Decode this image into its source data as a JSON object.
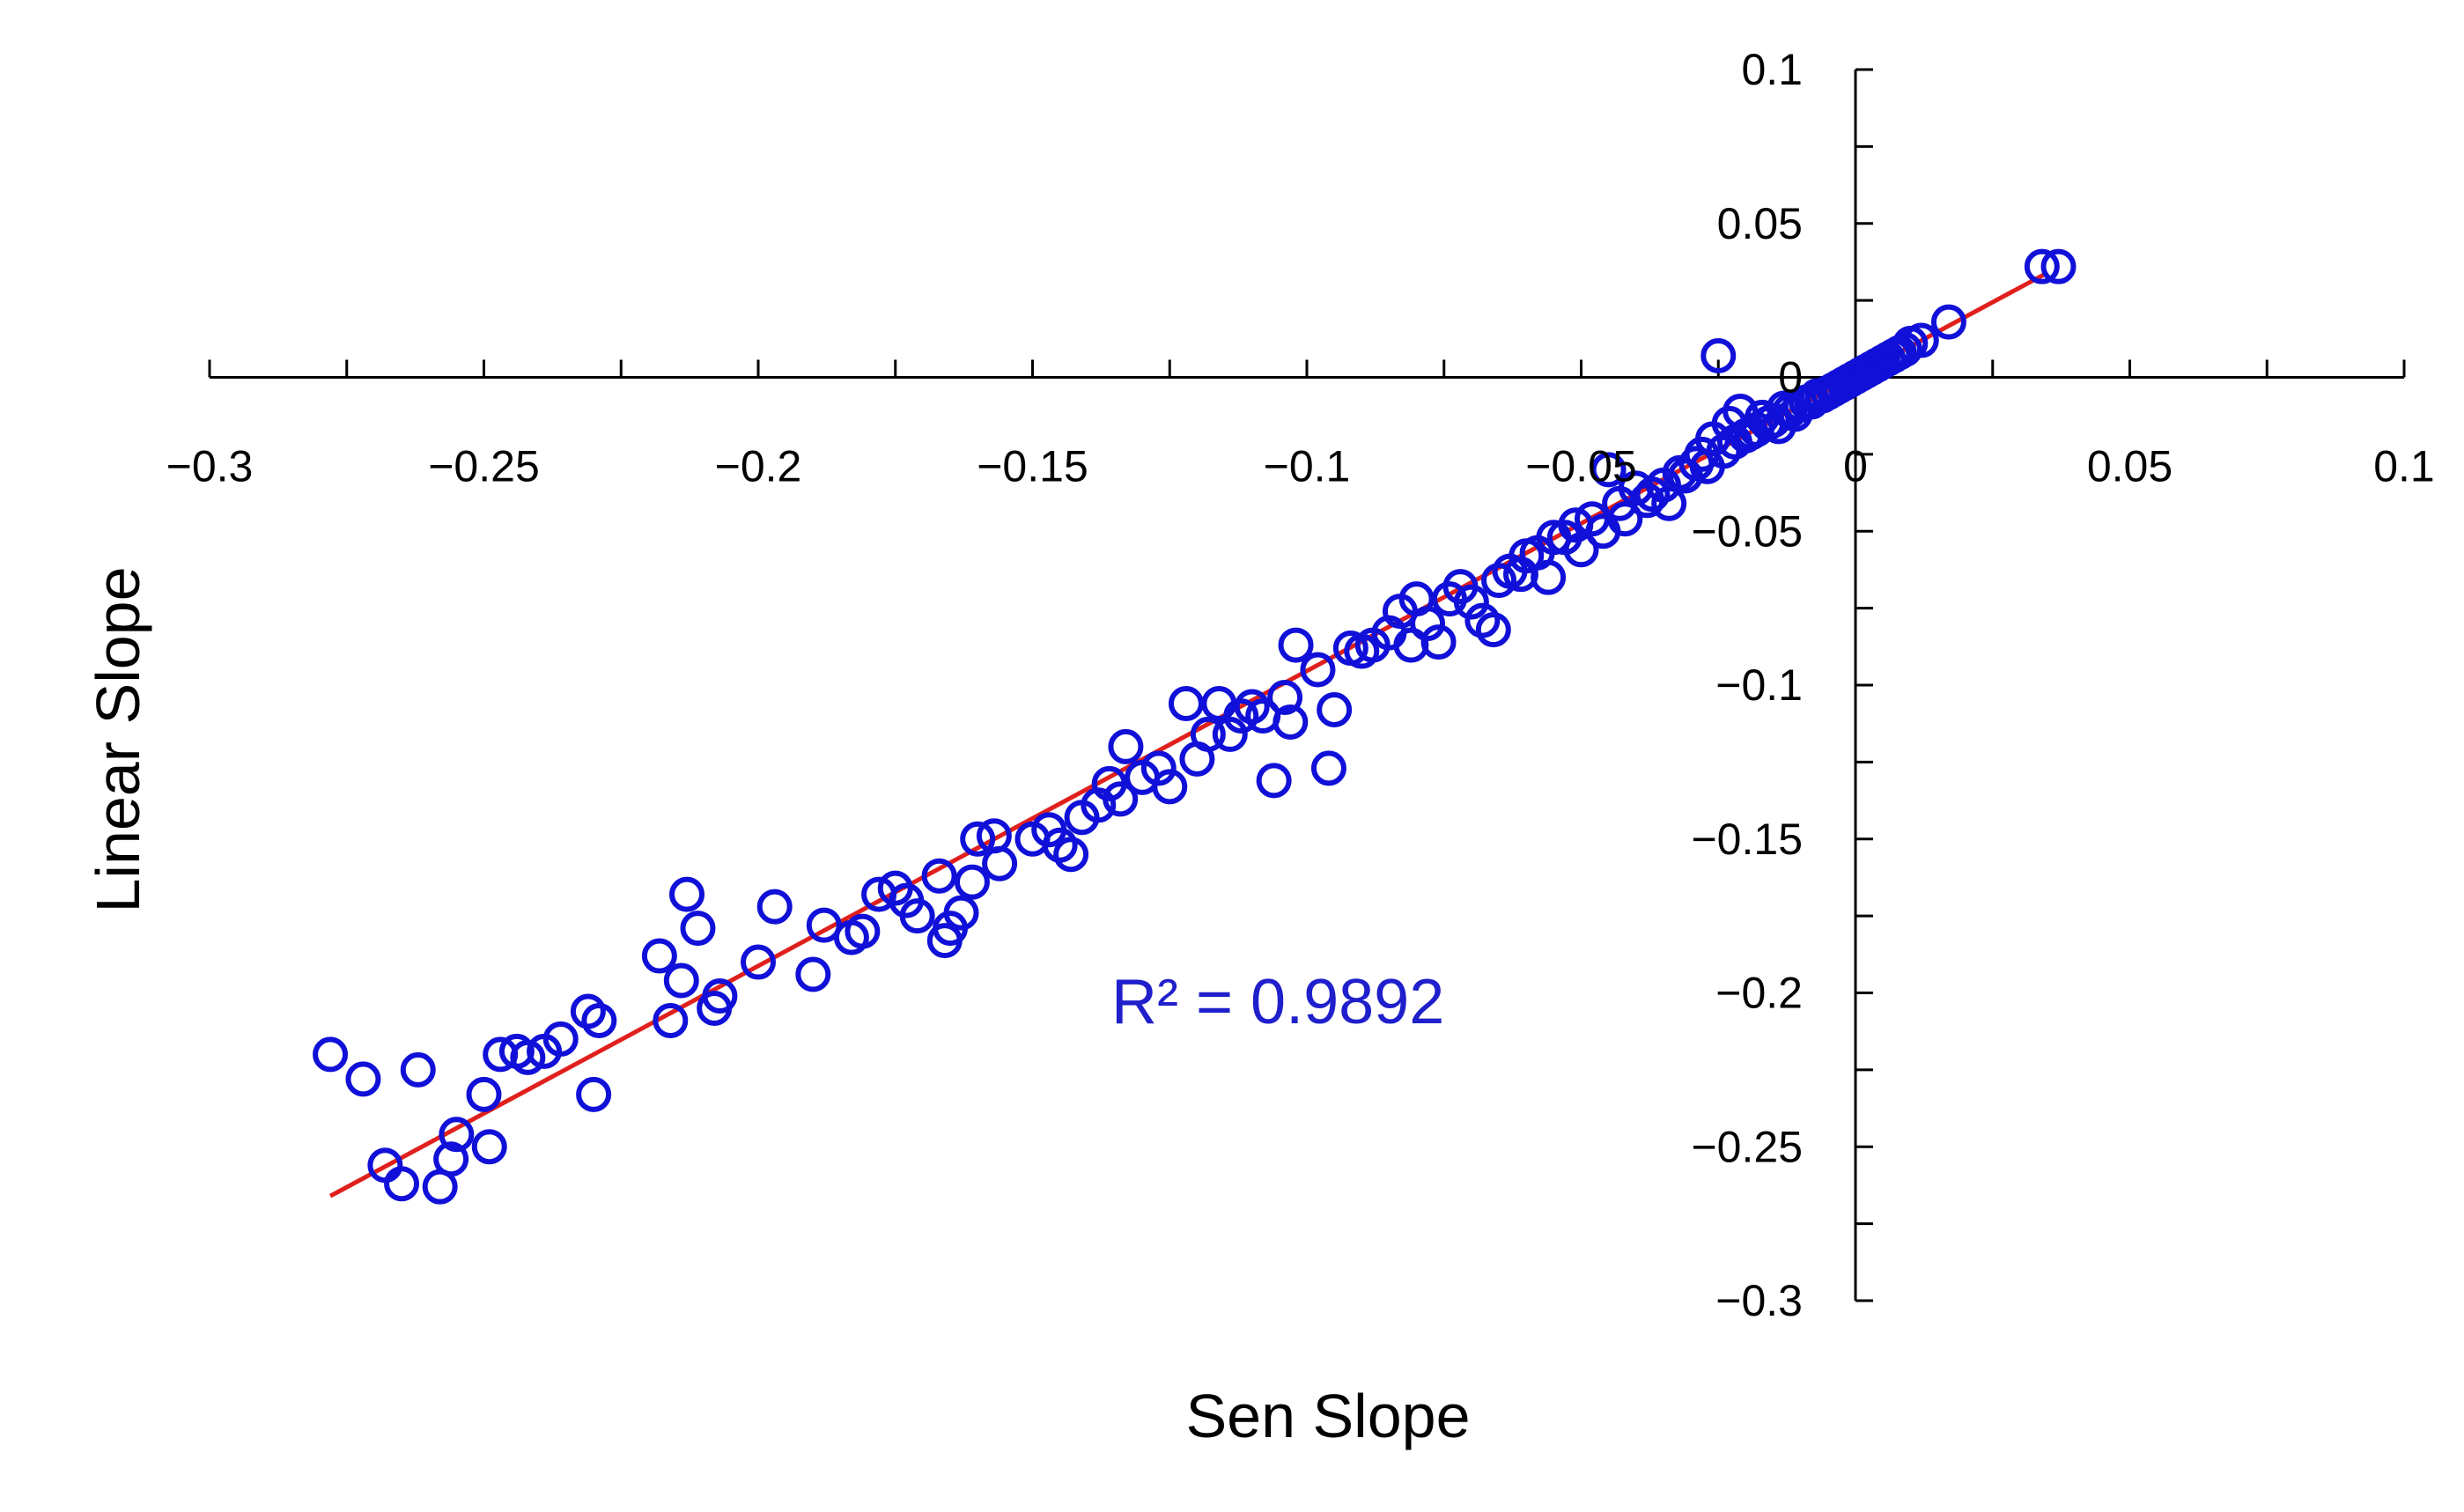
{
  "chart_data": {
    "type": "scatter",
    "xlabel": "Sen Slope",
    "ylabel": "Linear Slope",
    "xlim": [
      -0.3,
      0.1
    ],
    "ylim": [
      -0.3,
      0.1
    ],
    "x_ticks": [
      "−0.3",
      "−0.25",
      "−0.2",
      "−0.15",
      "−0.1",
      "−0.05",
      "0",
      "0.05",
      "0.1"
    ],
    "y_ticks": [
      "0.1",
      "0.05",
      "0",
      "−0.05",
      "−0.1",
      "−0.15",
      "−0.2",
      "−0.25",
      "−0.3"
    ],
    "annotation": {
      "label": "R² = 0.9892",
      "color": "#1f1fcc"
    },
    "marker_color": "#1010d8",
    "trend_color": "#e0201c",
    "trendline": {
      "x": [
        -0.278,
        0.035
      ],
      "y": [
        -0.266,
        0.034
      ]
    },
    "series": [
      {
        "points": [
          [
            -0.278,
            -0.22
          ],
          [
            -0.272,
            -0.228
          ],
          [
            -0.268,
            -0.256
          ],
          [
            -0.265,
            -0.262
          ],
          [
            -0.262,
            -0.225
          ],
          [
            -0.258,
            -0.263
          ],
          [
            -0.256,
            -0.254
          ],
          [
            -0.255,
            -0.246
          ],
          [
            -0.249,
            -0.25
          ],
          [
            -0.25,
            -0.233
          ],
          [
            -0.247,
            -0.22
          ],
          [
            -0.244,
            -0.219
          ],
          [
            -0.242,
            -0.221
          ],
          [
            -0.239,
            -0.219
          ],
          [
            -0.236,
            -0.215
          ],
          [
            -0.231,
            -0.206
          ],
          [
            -0.229,
            -0.209
          ],
          [
            -0.23,
            -0.233
          ],
          [
            -0.218,
            -0.188
          ],
          [
            -0.216,
            -0.209
          ],
          [
            -0.214,
            -0.196
          ],
          [
            -0.213,
            -0.168
          ],
          [
            -0.211,
            -0.179
          ],
          [
            -0.208,
            -0.205
          ],
          [
            -0.207,
            -0.201
          ],
          [
            -0.2,
            -0.19
          ],
          [
            -0.197,
            -0.172
          ],
          [
            -0.19,
            -0.194
          ],
          [
            -0.188,
            -0.178
          ],
          [
            -0.183,
            -0.182
          ],
          [
            -0.181,
            -0.18
          ],
          [
            -0.178,
            -0.168
          ],
          [
            -0.175,
            -0.166
          ],
          [
            -0.173,
            -0.17
          ],
          [
            -0.171,
            -0.175
          ],
          [
            -0.167,
            -0.162
          ],
          [
            -0.166,
            -0.183
          ],
          [
            -0.165,
            -0.179
          ],
          [
            -0.163,
            -0.174
          ],
          [
            -0.161,
            -0.164
          ],
          [
            -0.16,
            -0.15
          ],
          [
            -0.157,
            -0.149
          ],
          [
            -0.156,
            -0.158
          ],
          [
            -0.15,
            -0.15
          ],
          [
            -0.147,
            -0.147
          ],
          [
            -0.145,
            -0.152
          ],
          [
            -0.143,
            -0.155
          ],
          [
            -0.141,
            -0.143
          ],
          [
            -0.138,
            -0.139
          ],
          [
            -0.136,
            -0.132
          ],
          [
            -0.134,
            -0.137
          ],
          [
            -0.133,
            -0.12
          ],
          [
            -0.13,
            -0.13
          ],
          [
            -0.127,
            -0.127
          ],
          [
            -0.125,
            -0.133
          ],
          [
            -0.122,
            -0.106
          ],
          [
            -0.12,
            -0.124
          ],
          [
            -0.118,
            -0.116
          ],
          [
            -0.116,
            -0.106
          ],
          [
            -0.114,
            -0.116
          ],
          [
            -0.112,
            -0.11
          ],
          [
            -0.11,
            -0.107
          ],
          [
            -0.108,
            -0.11
          ],
          [
            -0.106,
            -0.131
          ],
          [
            -0.104,
            -0.104
          ],
          [
            -0.103,
            -0.112
          ],
          [
            -0.102,
            -0.087
          ],
          [
            -0.098,
            -0.095
          ],
          [
            -0.096,
            -0.127
          ],
          [
            -0.095,
            -0.108
          ],
          [
            -0.092,
            -0.088
          ],
          [
            -0.09,
            -0.089
          ],
          [
            -0.088,
            -0.087
          ],
          [
            -0.085,
            -0.083
          ],
          [
            -0.083,
            -0.076
          ],
          [
            -0.081,
            -0.087
          ],
          [
            -0.08,
            -0.072
          ],
          [
            -0.078,
            -0.08
          ],
          [
            -0.076,
            -0.086
          ],
          [
            -0.074,
            -0.072
          ],
          [
            -0.072,
            -0.068
          ],
          [
            -0.07,
            -0.073
          ],
          [
            -0.068,
            -0.079
          ],
          [
            -0.066,
            -0.082
          ],
          [
            -0.065,
            -0.066
          ],
          [
            -0.063,
            -0.063
          ],
          [
            -0.061,
            -0.064
          ],
          [
            -0.06,
            -0.058
          ],
          [
            -0.058,
            -0.057
          ],
          [
            -0.056,
            -0.065
          ],
          [
            -0.055,
            -0.052
          ],
          [
            -0.053,
            -0.052
          ],
          [
            -0.051,
            -0.048
          ],
          [
            -0.05,
            -0.056
          ],
          [
            -0.048,
            -0.046
          ],
          [
            -0.046,
            -0.05
          ],
          [
            -0.045,
            -0.03
          ],
          [
            -0.043,
            -0.041
          ],
          [
            -0.042,
            -0.046
          ],
          [
            -0.04,
            -0.036
          ],
          [
            -0.038,
            -0.04
          ],
          [
            -0.037,
            -0.038
          ],
          [
            -0.035,
            -0.035
          ],
          [
            -0.034,
            -0.041
          ],
          [
            -0.032,
            -0.031
          ],
          [
            -0.031,
            -0.032
          ],
          [
            -0.029,
            -0.028
          ],
          [
            -0.028,
            -0.025
          ],
          [
            -0.027,
            -0.029
          ],
          [
            -0.026,
            -0.02
          ],
          [
            -0.025,
            0.007
          ],
          [
            -0.024,
            -0.024
          ],
          [
            -0.023,
            -0.015
          ],
          [
            -0.022,
            -0.021
          ],
          [
            -0.021,
            -0.011
          ],
          [
            -0.02,
            -0.019
          ],
          [
            -0.019,
            -0.018
          ],
          [
            -0.018,
            -0.017
          ],
          [
            -0.017,
            -0.013
          ],
          [
            -0.016,
            -0.015
          ],
          [
            -0.015,
            -0.014
          ],
          [
            -0.014,
            -0.016
          ],
          [
            -0.013,
            -0.01
          ],
          [
            -0.012,
            -0.011
          ],
          [
            -0.011,
            -0.012
          ],
          [
            -0.01,
            -0.009
          ],
          [
            -0.009,
            -0.008
          ],
          [
            -0.008,
            -0.008
          ],
          [
            -0.007,
            -0.006
          ],
          [
            -0.006,
            -0.006
          ],
          [
            -0.005,
            -0.005
          ],
          [
            -0.004,
            -0.004
          ],
          [
            -0.003,
            -0.003
          ],
          [
            -0.002,
            -0.002
          ],
          [
            -0.001,
            -0.001
          ],
          [
            0.0,
            0.0
          ],
          [
            0.001,
            0.001
          ],
          [
            0.002,
            0.002
          ],
          [
            0.003,
            0.003
          ],
          [
            0.004,
            0.004
          ],
          [
            0.005,
            0.005
          ],
          [
            0.006,
            0.006
          ],
          [
            0.007,
            0.007
          ],
          [
            0.008,
            0.008
          ],
          [
            0.009,
            0.009
          ],
          [
            0.01,
            0.011
          ],
          [
            0.012,
            0.012
          ],
          [
            0.017,
            0.018
          ],
          [
            0.034,
            0.036
          ],
          [
            0.037,
            0.036
          ]
        ]
      }
    ]
  }
}
